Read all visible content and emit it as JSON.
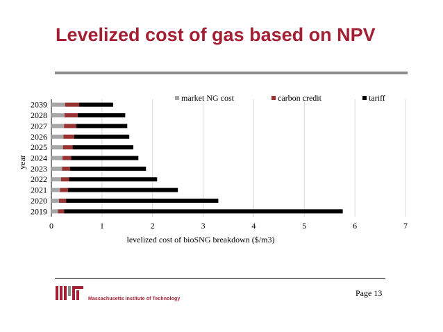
{
  "slide": {
    "title": "Levelized cost of gas based on NPV",
    "page_label": "Page 13",
    "institution": "Massachusetts Institute of Technology",
    "logo_text": "MIT"
  },
  "colors": {
    "title": "#a31f34",
    "market": "#a6a6a6",
    "carbon": "#993333",
    "tariff": "#000000"
  },
  "chart_data": {
    "type": "bar",
    "orientation": "horizontal",
    "stacked": true,
    "categories": [
      "2019",
      "2020",
      "2021",
      "2022",
      "2023",
      "2024",
      "2025",
      "2026",
      "2027",
      "2028",
      "2039"
    ],
    "series": [
      {
        "name": "market NG cost",
        "values": [
          0.13,
          0.15,
          0.17,
          0.19,
          0.21,
          0.22,
          0.23,
          0.24,
          0.25,
          0.26,
          0.27
        ]
      },
      {
        "name": "carbon credit",
        "values": [
          0.12,
          0.14,
          0.16,
          0.16,
          0.16,
          0.17,
          0.19,
          0.21,
          0.24,
          0.26,
          0.28
        ]
      },
      {
        "name": "tariff",
        "values": [
          5.51,
          3.01,
          2.17,
          1.74,
          1.5,
          1.33,
          1.2,
          1.09,
          1.01,
          0.94,
          0.67
        ]
      }
    ],
    "xlabel": "levelized cost of bioSNG breakdown ($/m3)",
    "ylabel": "year",
    "xlim": [
      0,
      7
    ],
    "xticks": [
      "0",
      "1",
      "2",
      "3",
      "4",
      "5",
      "6",
      "7"
    ],
    "grid": "vertical",
    "legend": "top-right"
  }
}
